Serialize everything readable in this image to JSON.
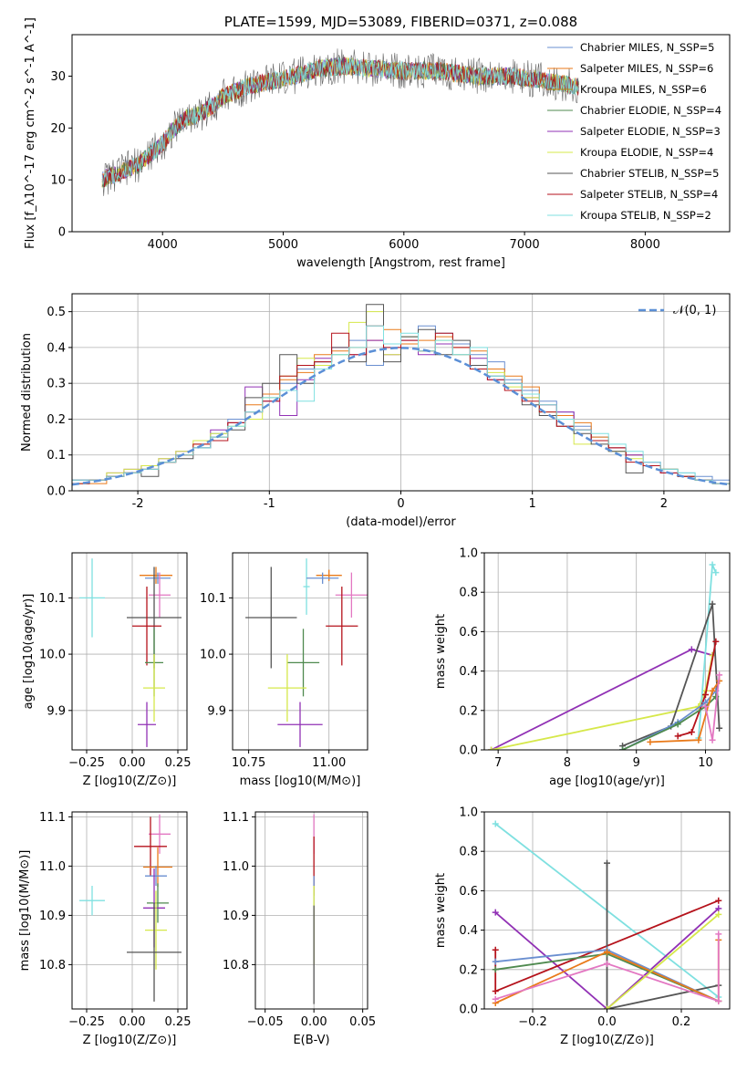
{
  "chart_data": [
    {
      "id": "spectrum",
      "type": "line",
      "title": "PLATE=1599, MJD=53089, FIBERID=0371, z=0.088",
      "xlabel": "wavelength [Angstrom, rest frame]",
      "ylabel": "Flux [f_λ10^-17 erg cm^-2 s^-1 A^-1]",
      "xlim": [
        3250,
        8700
      ],
      "ylim": [
        0,
        38
      ],
      "xticks": [
        4000,
        5000,
        6000,
        7000,
        8000
      ],
      "yticks": [
        0,
        10,
        20,
        30
      ],
      "grid": false,
      "legend_position": "top-right",
      "continuum": {
        "x": [
          3500,
          3600,
          3700,
          3800,
          3900,
          4000,
          4100,
          4200,
          4300,
          4400,
          4500,
          4700,
          4900,
          5100,
          5300,
          5500,
          5700,
          6000,
          6300,
          6600,
          6900,
          7200,
          7450
        ],
        "y": [
          10,
          11,
          12,
          13,
          15,
          17,
          20,
          22,
          22.5,
          24,
          26,
          28,
          29,
          30,
          31.5,
          32,
          31.5,
          31,
          31,
          30,
          30,
          29,
          28
        ]
      },
      "series": [
        {
          "name": "Chabrier MILES, N_SSP=5",
          "color": "#6a8fd0"
        },
        {
          "name": "Salpeter MILES, N_SSP=6",
          "color": "#e97a1a"
        },
        {
          "name": "Kroupa MILES, N_SSP=6",
          "color": "#b58a12"
        },
        {
          "name": "Chabrier ELODIE, N_SSP=4",
          "color": "#4f8a4f"
        },
        {
          "name": "Salpeter ELODIE, N_SSP=3",
          "color": "#9131b5"
        },
        {
          "name": "Kroupa ELODIE, N_SSP=4",
          "color": "#d6e84a"
        },
        {
          "name": "Chabrier STELIB, N_SSP=5",
          "color": "#555555"
        },
        {
          "name": "Salpeter STELIB, N_SSP=4",
          "color": "#b5121b"
        },
        {
          "name": "Kroupa STELIB, N_SSP=2",
          "color": "#7fe0e0"
        }
      ]
    },
    {
      "id": "residuals",
      "type": "line",
      "xlabel": "(data-model)/error",
      "ylabel": "Normed distribution",
      "xlim": [
        -2.5,
        2.5
      ],
      "ylim": [
        0,
        0.55
      ],
      "xticks": [
        -2,
        -1,
        0,
        1,
        2
      ],
      "yticks": [
        0.0,
        0.1,
        0.2,
        0.3,
        0.4,
        0.5
      ],
      "grid": true,
      "legend_position": "top-right",
      "gaussian_label": "𝒩(0, 1)",
      "gaussian_color": "#5b8fd6",
      "series": [
        {
          "color": "#6a8fd0",
          "values": [
            0.02,
            0.03,
            0.04,
            0.05,
            0.06,
            0.08,
            0.1,
            0.12,
            0.16,
            0.2,
            0.22,
            0.26,
            0.3,
            0.34,
            0.36,
            0.38,
            0.42,
            0.35,
            0.4,
            0.43,
            0.46,
            0.44,
            0.41,
            0.38,
            0.36,
            0.31,
            0.28,
            0.25,
            0.22,
            0.18,
            0.15,
            0.12,
            0.1,
            0.08,
            0.06,
            0.05,
            0.04,
            0.03
          ]
        },
        {
          "color": "#e97a1a",
          "values": [
            0.02,
            0.02,
            0.04,
            0.05,
            0.07,
            0.08,
            0.1,
            0.13,
            0.15,
            0.19,
            0.24,
            0.27,
            0.31,
            0.33,
            0.38,
            0.39,
            0.4,
            0.42,
            0.45,
            0.41,
            0.42,
            0.43,
            0.4,
            0.39,
            0.34,
            0.32,
            0.29,
            0.24,
            0.21,
            0.19,
            0.15,
            0.12,
            0.1,
            0.07,
            0.06,
            0.04,
            0.03,
            0.02
          ]
        },
        {
          "color": "#9131b5",
          "values": [
            0.03,
            0.03,
            0.05,
            0.06,
            0.07,
            0.09,
            0.11,
            0.12,
            0.17,
            0.19,
            0.29,
            0.25,
            0.21,
            0.31,
            0.37,
            0.4,
            0.38,
            0.42,
            0.38,
            0.42,
            0.38,
            0.41,
            0.38,
            0.37,
            0.31,
            0.3,
            0.26,
            0.24,
            0.22,
            0.17,
            0.14,
            0.12,
            0.1,
            0.08,
            0.05,
            0.04,
            0.03,
            0.02
          ]
        },
        {
          "color": "#d6e84a",
          "values": [
            0.02,
            0.03,
            0.05,
            0.06,
            0.07,
            0.09,
            0.11,
            0.14,
            0.16,
            0.18,
            0.2,
            0.26,
            0.32,
            0.37,
            0.35,
            0.38,
            0.47,
            0.5,
            0.38,
            0.43,
            0.39,
            0.42,
            0.38,
            0.35,
            0.33,
            0.29,
            0.26,
            0.22,
            0.2,
            0.13,
            0.14,
            0.11,
            0.09,
            0.07,
            0.06,
            0.04,
            0.03,
            0.02
          ]
        },
        {
          "color": "#555555",
          "values": [
            0.03,
            0.03,
            0.04,
            0.05,
            0.04,
            0.08,
            0.09,
            0.12,
            0.15,
            0.17,
            0.26,
            0.3,
            0.38,
            0.3,
            0.36,
            0.4,
            0.36,
            0.52,
            0.36,
            0.43,
            0.45,
            0.38,
            0.42,
            0.35,
            0.32,
            0.3,
            0.24,
            0.21,
            0.18,
            0.16,
            0.13,
            0.11,
            0.05,
            0.07,
            0.06,
            0.04,
            0.03,
            0.02
          ]
        },
        {
          "color": "#b5121b",
          "values": [
            0.02,
            0.03,
            0.04,
            0.05,
            0.06,
            0.08,
            0.1,
            0.13,
            0.14,
            0.19,
            0.22,
            0.25,
            0.32,
            0.35,
            0.36,
            0.44,
            0.38,
            0.46,
            0.4,
            0.42,
            0.39,
            0.44,
            0.4,
            0.34,
            0.31,
            0.28,
            0.25,
            0.22,
            0.18,
            0.17,
            0.14,
            0.12,
            0.08,
            0.07,
            0.05,
            0.04,
            0.03,
            0.02
          ]
        },
        {
          "color": "#7fe0e0",
          "values": [
            0.03,
            0.03,
            0.04,
            0.05,
            0.06,
            0.08,
            0.1,
            0.12,
            0.15,
            0.18,
            0.22,
            0.26,
            0.28,
            0.25,
            0.34,
            0.38,
            0.4,
            0.46,
            0.41,
            0.44,
            0.39,
            0.42,
            0.38,
            0.4,
            0.32,
            0.3,
            0.27,
            0.24,
            0.2,
            0.17,
            0.16,
            0.13,
            0.11,
            0.08,
            0.06,
            0.05,
            0.03,
            0.02
          ]
        }
      ]
    },
    {
      "id": "age-vs-Z",
      "type": "scatter",
      "xlabel": "Z [log10(Z/Z⊙)]",
      "ylabel": "age  [log10(age/yr)]",
      "xlim": [
        -0.33,
        0.3
      ],
      "ylim": [
        9.83,
        10.18
      ],
      "xticks": [
        -0.25,
        0.0,
        0.25
      ],
      "xticklabels": [
        "−0.25",
        "0.00",
        "0.25"
      ],
      "yticks": [
        9.9,
        10.0,
        10.1
      ],
      "grid": true,
      "points": [
        {
          "color": "#7fe0e0",
          "x": -0.22,
          "y": 10.1,
          "ex": 0.07,
          "ey": 0.07
        },
        {
          "color": "#e97a1a",
          "x": 0.13,
          "y": 10.14,
          "ex": 0.09,
          "ey": 0.015
        },
        {
          "color": "#6a8fd0",
          "x": 0.14,
          "y": 10.135,
          "ex": 0.07,
          "ey": 0.01
        },
        {
          "color": "#e377c2",
          "x": 0.15,
          "y": 10.105,
          "ex": 0.06,
          "ey": 0.04
        },
        {
          "color": "#555555",
          "x": 0.12,
          "y": 10.065,
          "ex": 0.15,
          "ey": 0.09
        },
        {
          "color": "#b5121b",
          "x": 0.08,
          "y": 10.05,
          "ex": 0.08,
          "ey": 0.07
        },
        {
          "color": "#4f8a4f",
          "x": 0.12,
          "y": 9.985,
          "ex": 0.05,
          "ey": 0.06
        },
        {
          "color": "#d6e84a",
          "x": 0.12,
          "y": 9.94,
          "ex": 0.06,
          "ey": 0.06
        },
        {
          "color": "#9131b5",
          "x": 0.08,
          "y": 9.875,
          "ex": 0.05,
          "ey": 0.04
        }
      ]
    },
    {
      "id": "age-vs-mass",
      "type": "scatter",
      "xlabel": "mass [log10(M/M⊙)]",
      "ylabel": "",
      "xlim": [
        10.7,
        11.12
      ],
      "ylim": [
        9.83,
        10.18
      ],
      "xticks": [
        10.75,
        11.0
      ],
      "xticklabels": [
        "10.75",
        "11.00"
      ],
      "yticks": [
        9.9,
        10.0,
        10.1
      ],
      "grid": true,
      "points": [
        {
          "color": "#7fe0e0",
          "x": 10.93,
          "y": 10.12,
          "ex": 0.01,
          "ey": 0.05
        },
        {
          "color": "#e97a1a",
          "x": 11.0,
          "y": 10.14,
          "ex": 0.04,
          "ey": 0.01
        },
        {
          "color": "#6a8fd0",
          "x": 10.98,
          "y": 10.135,
          "ex": 0.05,
          "ey": 0.01
        },
        {
          "color": "#e377c2",
          "x": 11.07,
          "y": 10.105,
          "ex": 0.05,
          "ey": 0.04
        },
        {
          "color": "#555555",
          "x": 10.82,
          "y": 10.065,
          "ex": 0.08,
          "ey": 0.09
        },
        {
          "color": "#b5121b",
          "x": 11.04,
          "y": 10.05,
          "ex": 0.05,
          "ey": 0.07
        },
        {
          "color": "#4f8a4f",
          "x": 10.92,
          "y": 9.985,
          "ex": 0.05,
          "ey": 0.06
        },
        {
          "color": "#d6e84a",
          "x": 10.87,
          "y": 9.94,
          "ex": 0.06,
          "ey": 0.06
        },
        {
          "color": "#9131b5",
          "x": 10.91,
          "y": 9.875,
          "ex": 0.07,
          "ey": 0.04
        }
      ]
    },
    {
      "id": "weight-vs-age",
      "type": "line",
      "xlabel": "age  [log10(age/yr)]",
      "ylabel": "mass weight",
      "xlim": [
        6.8,
        10.35
      ],
      "ylim": [
        0,
        1
      ],
      "xticks": [
        7,
        8,
        9,
        10
      ],
      "yticks": [
        0.0,
        0.2,
        0.4,
        0.6,
        0.8,
        1.0
      ],
      "grid": true,
      "series": [
        {
          "color": "#9131b5",
          "x": [
            6.9,
            9.8,
            10.1
          ],
          "y": [
            0.0,
            0.51,
            0.48
          ]
        },
        {
          "color": "#d6e84a",
          "x": [
            6.9,
            9.9,
            10.0,
            10.1
          ],
          "y": [
            0.0,
            0.22,
            0.3,
            0.48
          ]
        },
        {
          "color": "#7fe0e0",
          "x": [
            9.9,
            10.1,
            10.15
          ],
          "y": [
            0.06,
            0.94,
            0.9
          ]
        },
        {
          "color": "#555555",
          "x": [
            8.8,
            9.5,
            10.1,
            10.2
          ],
          "y": [
            0.02,
            0.12,
            0.74,
            0.11
          ]
        },
        {
          "color": "#b5121b",
          "x": [
            9.6,
            9.8,
            10.0,
            10.15
          ],
          "y": [
            0.07,
            0.09,
            0.28,
            0.55
          ]
        },
        {
          "color": "#6a8fd0",
          "x": [
            8.8,
            9.6,
            10.0,
            10.15
          ],
          "y": [
            0.0,
            0.14,
            0.24,
            0.3
          ]
        },
        {
          "color": "#4f8a4f",
          "x": [
            8.8,
            9.6,
            10.0,
            10.15
          ],
          "y": [
            0.0,
            0.13,
            0.22,
            0.27
          ]
        },
        {
          "color": "#e97a1a",
          "x": [
            9.2,
            9.9,
            10.1,
            10.2
          ],
          "y": [
            0.04,
            0.05,
            0.3,
            0.35
          ]
        },
        {
          "color": "#e377c2",
          "x": [
            10.0,
            10.1,
            10.2
          ],
          "y": [
            0.22,
            0.05,
            0.38
          ]
        }
      ]
    },
    {
      "id": "mass-vs-Z",
      "type": "scatter",
      "xlabel": "Z [log10(Z/Z⊙)]",
      "ylabel": "mass [log10(M/M⊙)]",
      "xlim": [
        -0.33,
        0.3
      ],
      "ylim": [
        10.71,
        11.11
      ],
      "xticks": [
        -0.25,
        0.0,
        0.25
      ],
      "xticklabels": [
        "−0.25",
        "0.00",
        "0.25"
      ],
      "yticks": [
        10.8,
        10.9,
        11.0,
        11.1
      ],
      "grid": true,
      "points": [
        {
          "color": "#7fe0e0",
          "x": -0.22,
          "y": 10.93,
          "ex": 0.07,
          "ey": 0.03
        },
        {
          "color": "#e377c2",
          "x": 0.15,
          "y": 11.065,
          "ex": 0.06,
          "ey": 0.04
        },
        {
          "color": "#b5121b",
          "x": 0.1,
          "y": 11.04,
          "ex": 0.09,
          "ey": 0.06
        },
        {
          "color": "#e97a1a",
          "x": 0.14,
          "y": 10.998,
          "ex": 0.08,
          "ey": 0.04
        },
        {
          "color": "#6a8fd0",
          "x": 0.13,
          "y": 10.98,
          "ex": 0.06,
          "ey": 0.02
        },
        {
          "color": "#4f8a4f",
          "x": 0.14,
          "y": 10.925,
          "ex": 0.06,
          "ey": 0.04
        },
        {
          "color": "#9131b5",
          "x": 0.12,
          "y": 10.915,
          "ex": 0.06,
          "ey": 0.08
        },
        {
          "color": "#d6e84a",
          "x": 0.13,
          "y": 10.87,
          "ex": 0.06,
          "ey": 0.08
        },
        {
          "color": "#555555",
          "x": 0.12,
          "y": 10.825,
          "ex": 0.15,
          "ey": 0.1
        }
      ]
    },
    {
      "id": "mass-vs-ebv",
      "type": "scatter",
      "xlabel": "E(B-V)",
      "ylabel": "",
      "xlim": [
        -0.06,
        0.055
      ],
      "ylim": [
        10.71,
        11.11
      ],
      "xticks": [
        -0.05,
        0.0,
        0.05
      ],
      "xticklabels": [
        "−0.05",
        "0.00",
        "0.05"
      ],
      "yticks": [
        10.8,
        10.9,
        11.0,
        11.1
      ],
      "grid": true,
      "points": [
        {
          "color": "#e377c2",
          "x": 0.0,
          "y": 11.065,
          "ex": 0,
          "ey": 0.04
        },
        {
          "color": "#b5121b",
          "x": 0.0,
          "y": 11.0,
          "ex": 0,
          "ey": 0.06
        },
        {
          "color": "#6a8fd0",
          "x": 0.0,
          "y": 10.95,
          "ex": 0,
          "ey": 0.03
        },
        {
          "color": "#d6e84a",
          "x": 0.0,
          "y": 10.88,
          "ex": 0,
          "ey": 0.08
        },
        {
          "color": "#555555",
          "x": 0.0,
          "y": 10.82,
          "ex": 0,
          "ey": 0.1
        }
      ]
    },
    {
      "id": "weight-vs-Z",
      "type": "line",
      "xlabel": "Z [log10(Z/Z⊙)]",
      "ylabel": "mass weight",
      "xlim": [
        -0.33,
        0.33
      ],
      "ylim": [
        0,
        1
      ],
      "xticks": [
        -0.2,
        0.0,
        0.2
      ],
      "xticklabels": [
        "−0.2",
        "0.0",
        "0.2"
      ],
      "yticks": [
        0.0,
        0.2,
        0.4,
        0.6,
        0.8,
        1.0
      ],
      "grid": true,
      "series": [
        {
          "color": "#7fe0e0",
          "x": [
            -0.3,
            0.3
          ],
          "y": [
            0.94,
            0.06
          ]
        },
        {
          "color": "#9131b5",
          "x": [
            -0.3,
            0.0,
            0.3
          ],
          "y": [
            0.49,
            0.0,
            0.51
          ]
        },
        {
          "color": "#b5121b",
          "x": [
            -0.3,
            -0.3,
            0.3
          ],
          "y": [
            0.3,
            0.09,
            0.55
          ]
        },
        {
          "color": "#555555",
          "x": [
            0.0,
            0.0,
            0.3
          ],
          "y": [
            0.74,
            0.0,
            0.12
          ]
        },
        {
          "color": "#6a8fd0",
          "x": [
            -0.3,
            0.0,
            0.3
          ],
          "y": [
            0.24,
            0.3,
            0.04
          ]
        },
        {
          "color": "#4f8a4f",
          "x": [
            -0.3,
            0.0,
            0.3
          ],
          "y": [
            0.2,
            0.28,
            0.04
          ]
        },
        {
          "color": "#e97a1a",
          "x": [
            -0.3,
            0.0,
            0.3,
            0.3
          ],
          "y": [
            0.03,
            0.29,
            0.04,
            0.35
          ]
        },
        {
          "color": "#e377c2",
          "x": [
            -0.3,
            0.0,
            0.3,
            0.3
          ],
          "y": [
            0.05,
            0.23,
            0.04,
            0.38
          ]
        },
        {
          "color": "#d6e84a",
          "x": [
            0.0,
            0.3
          ],
          "y": [
            0.0,
            0.48
          ]
        }
      ]
    }
  ]
}
